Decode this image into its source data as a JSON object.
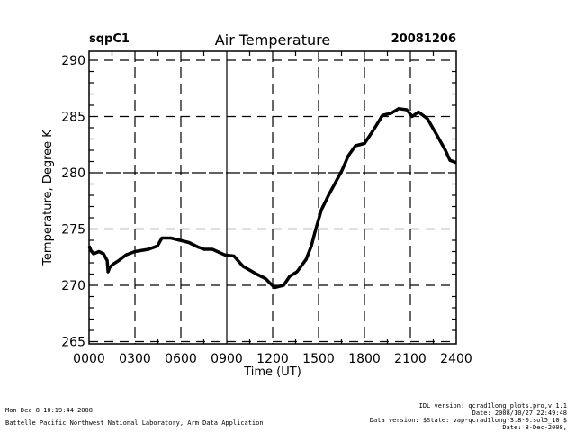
{
  "header": {
    "site": "sqpC1",
    "title": "Air Temperature",
    "date": "20081206"
  },
  "chart_data": {
    "type": "line",
    "title": "Air Temperature",
    "xlabel": "Time (UT)",
    "ylabel": "Temperature, Degree K",
    "xlim": [
      0,
      24
    ],
    "ylim": [
      264.8,
      290.8
    ],
    "grid": true,
    "x_ticks": [
      0,
      3,
      6,
      9,
      12,
      15,
      18,
      21,
      24
    ],
    "x_tick_labels": [
      "0000",
      "0300",
      "0600",
      "0900",
      "1200",
      "1500",
      "1800",
      "2100",
      "2400"
    ],
    "y_ticks": [
      265,
      270,
      275,
      280,
      285,
      290
    ],
    "y_tick_labels": [
      "265",
      "270",
      "275",
      "280",
      "285",
      "290"
    ],
    "series": [
      {
        "name": "Air Temperature",
        "color": "#000000",
        "x": [
          0.0,
          0.12,
          0.29,
          0.65,
          0.94,
          1.18,
          1.24,
          1.35,
          1.59,
          1.94,
          2.41,
          3.0,
          3.88,
          4.47,
          4.76,
          5.35,
          5.94,
          6.53,
          7.12,
          7.53,
          8.06,
          8.88,
          9.47,
          10.06,
          10.94,
          11.53,
          12.12,
          12.71,
          13.12,
          13.59,
          14.18,
          14.53,
          14.76,
          15.18,
          15.65,
          16.53,
          16.94,
          17.41,
          18.0,
          18.59,
          19.18,
          19.76,
          20.24,
          20.76,
          21.12,
          21.53,
          22.12,
          22.71,
          23.29,
          23.59,
          24.0
        ],
        "y": [
          273.5,
          273.1,
          272.8,
          273.0,
          272.8,
          272.2,
          271.2,
          271.6,
          271.9,
          272.2,
          272.7,
          273.0,
          273.2,
          273.5,
          274.2,
          274.2,
          274.0,
          273.8,
          273.4,
          273.2,
          273.2,
          272.7,
          272.6,
          271.7,
          271.0,
          270.6,
          269.8,
          270.0,
          270.8,
          271.2,
          272.3,
          273.5,
          274.7,
          276.7,
          278.0,
          280.2,
          281.5,
          282.4,
          282.6,
          283.8,
          285.1,
          285.3,
          285.7,
          285.6,
          285.0,
          285.4,
          284.8,
          283.4,
          282.0,
          281.1,
          280.9
        ]
      }
    ]
  },
  "footer": {
    "timestamp": "Mon Dec  8 10:19:44 2008",
    "lab": "Battelle Pacific Northwest National Laboratory, Arm Data Application",
    "idl_version": "IDL version: qcrad1long_plots.pro,v 1.1",
    "idl_date": "Date: 2008/10/27 22:49:48",
    "data_version": "Data version: $State: vap-qcrad1long-3.8-0.sol5_10 $",
    "data_date": "Date: 8-Dec-2008,"
  }
}
